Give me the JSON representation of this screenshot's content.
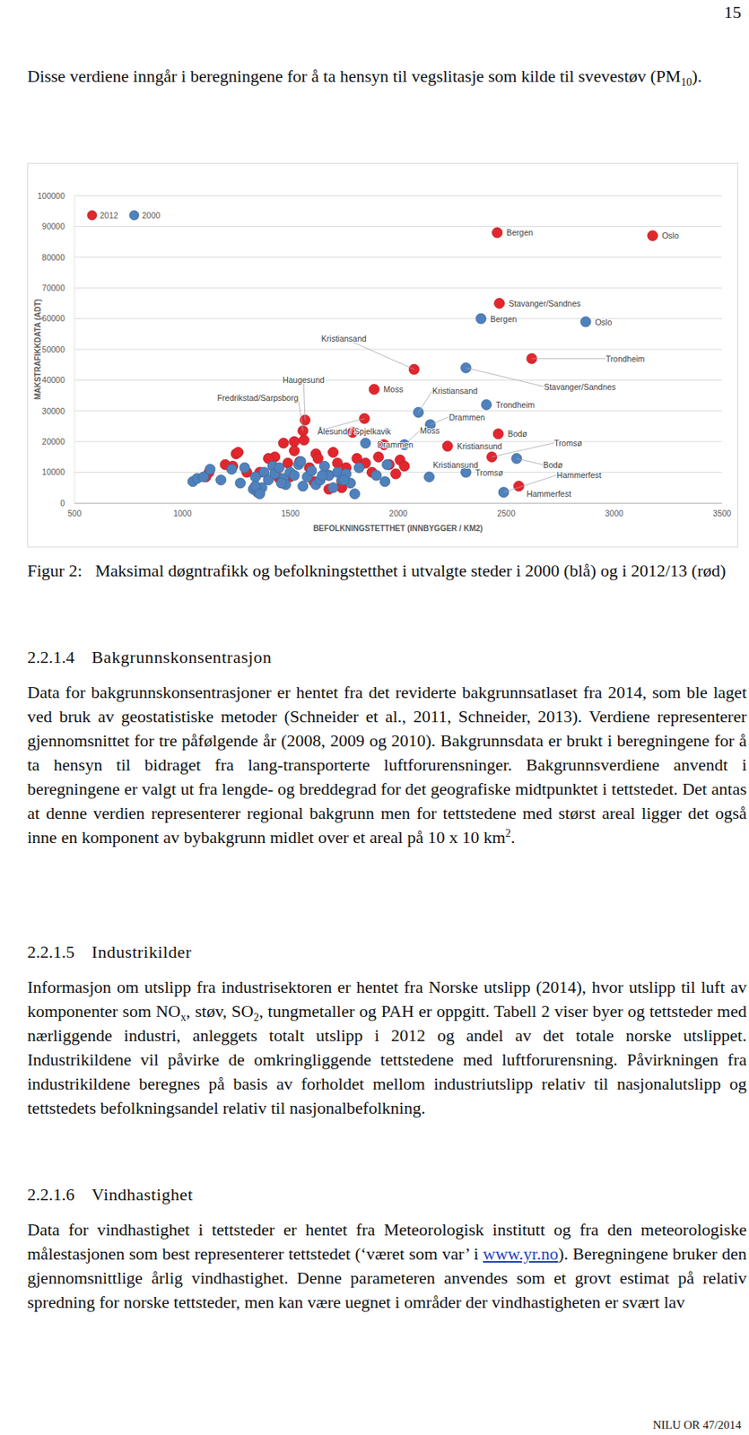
{
  "page_number": "15",
  "intro": {
    "runs": [
      {
        "t": "Disse verdiene inngår i beregningene for å ta hensyn til vegslitasje som kilde til svevestøv (PM"
      },
      {
        "sub": "10"
      },
      {
        "t": ")."
      }
    ]
  },
  "chart_data": {
    "type": "scatter",
    "x_label": "BEFOLKNINGSTETTHET (INNBYGGER / KM2)",
    "y_label": "MAKSTRAFIKKDATA (ADT)",
    "xlim": [
      500,
      3500
    ],
    "ylim": [
      0,
      100000
    ],
    "xticks": [
      500,
      1000,
      1500,
      2000,
      2500,
      3000,
      3500
    ],
    "yticks": [
      0,
      10000,
      20000,
      30000,
      40000,
      50000,
      60000,
      70000,
      80000,
      90000,
      100000
    ],
    "grid": true,
    "legend": "top-left",
    "series": [
      {
        "name": "2012",
        "color": "#e3262d",
        "marker": "circle",
        "x": [
          3180,
          2460,
          2470,
          2620,
          2075,
          1890,
          1570,
          1845,
          2465,
          2230,
          2435,
          2560,
          1125,
          1110,
          1250,
          1260,
          1235,
          1300,
          1360,
          1520,
          1430,
          1470,
          1490,
          1500,
          1520,
          1545,
          1565,
          1590,
          1620,
          1630,
          1560,
          1680,
          1700,
          1720,
          1740,
          1760,
          1790,
          1810,
          1850,
          1880,
          1910,
          1935,
          1960,
          1990,
          2010,
          2030,
          1680,
          1740,
          1610,
          1450,
          1400,
          1340,
          1440,
          1200
        ],
        "values": [
          87000,
          88000,
          65000,
          47000,
          43500,
          37000,
          27000,
          27500,
          22500,
          18500,
          15000,
          5500,
          10000,
          8500,
          16000,
          16500,
          12000,
          10000,
          10000,
          20000,
          15000,
          19500,
          13000,
          8500,
          17000,
          13500,
          20500,
          11500,
          16000,
          14500,
          23500,
          9000,
          16500,
          13000,
          7000,
          11500,
          23000,
          14500,
          13000,
          10000,
          15000,
          19000,
          12500,
          9500,
          14000,
          12000,
          4500,
          5000,
          7000,
          8000,
          14500,
          5500,
          11000,
          12500
        ]
      },
      {
        "name": "2000",
        "color": "#4f81bd",
        "marker": "circle",
        "x": [
          2870,
          2385,
          2315,
          2410,
          2095,
          2150,
          2030,
          1850,
          2145,
          2315,
          2550,
          2490,
          1050,
          1070,
          1100,
          1130,
          1180,
          1230,
          1270,
          1290,
          1330,
          1340,
          1350,
          1370,
          1380,
          1400,
          1420,
          1430,
          1450,
          1470,
          1480,
          1500,
          1520,
          1540,
          1560,
          1580,
          1600,
          1620,
          1640,
          1660,
          1680,
          1700,
          1720,
          1740,
          1760,
          1780,
          1800,
          1820,
          1900,
          1940,
          1950,
          1340,
          1360,
          1460,
          1550,
          1650,
          1750
        ],
        "values": [
          59000,
          60000,
          44000,
          32000,
          29500,
          25500,
          19000,
          19500,
          8500,
          10000,
          14500,
          3500,
          7000,
          8000,
          8500,
          11000,
          7500,
          11000,
          6500,
          11500,
          4500,
          8500,
          3500,
          5000,
          10000,
          7500,
          12000,
          9500,
          11500,
          8000,
          6000,
          10000,
          9000,
          12500,
          5500,
          8500,
          10500,
          6000,
          7500,
          12000,
          9000,
          5000,
          10000,
          7500,
          9500,
          6500,
          3000,
          11500,
          9000,
          7000,
          12500,
          5500,
          3000,
          6500,
          13500,
          9000,
          7500
        ]
      }
    ],
    "annotations": [
      {
        "text": "Oslo",
        "series": 0,
        "index": 0
      },
      {
        "text": "Bergen",
        "series": 0,
        "index": 1
      },
      {
        "text": "Stavanger/Sandnes",
        "series": 0,
        "index": 2
      },
      {
        "text": "Bergen",
        "series": 1,
        "index": 1
      },
      {
        "text": "Oslo",
        "series": 1,
        "index": 0
      },
      {
        "text": "Trondheim",
        "series": 0,
        "index": 3
      },
      {
        "text": "Stavanger/Sandnes",
        "series": 1,
        "index": 2
      },
      {
        "text": "Kristiansand",
        "series": 0,
        "index": 4
      },
      {
        "text": "Moss",
        "series": 0,
        "index": 5
      },
      {
        "text": "Haugesund",
        "series": 0,
        "index": 6
      },
      {
        "text": "Fredrikstad/Sarpsborg",
        "series": 0,
        "index": 30
      },
      {
        "text": "Ålesund / Spjelkavik",
        "series": 0,
        "index": 7
      },
      {
        "text": "Kristiansand",
        "series": 1,
        "index": 4
      },
      {
        "text": "Trondheim",
        "series": 1,
        "index": 3
      },
      {
        "text": "Drammen",
        "series": 1,
        "index": 5
      },
      {
        "text": "Moss",
        "series": 1,
        "index": 6
      },
      {
        "text": "Drammen",
        "series": 1,
        "index": 7
      },
      {
        "text": "Bodø",
        "series": 0,
        "index": 8
      },
      {
        "text": "Kristiansund",
        "series": 0,
        "index": 9
      },
      {
        "text": "Tromsø",
        "series": 0,
        "index": 10
      },
      {
        "text": "Kristiansund",
        "series": 1,
        "index": 8
      },
      {
        "text": "Tromsø",
        "series": 1,
        "index": 9
      },
      {
        "text": "Bodø",
        "series": 1,
        "index": 10
      },
      {
        "text": "Hammerfest",
        "series": 1,
        "index": 11
      },
      {
        "text": "Hammerfest",
        "series": 0,
        "index": 11
      }
    ]
  },
  "caption": {
    "label": "Figur 2:",
    "text": "Maksimal døgntrafikk og befolkningstetthet i utvalgte steder i 2000 (blå) og i 2012/13 (rød)"
  },
  "sections": [
    {
      "number": "2.2.1.4",
      "title": "Bakgrunnskonsentrasjon",
      "runs": [
        {
          "t": "Data for bakgrunnskonsentrasjoner er hentet fra det reviderte bakgrunnsatlaset fra 2014, som ble laget ved bruk av geostatistiske metoder (Schneider et al., 2011, Schneider, 2013). Verdiene representerer gjennomsnittet for tre påfølgende år (2008, 2009 og 2010). Bakgrunnsdata er brukt i beregningene for å ta hensyn til bidraget fra lang-transporterte luftforurensninger. Bakgrunnsverdiene anvendt i beregningene er valgt ut fra lengde- og breddegrad for det geografiske midtpunktet i tettstedet. Det antas at denne verdien representerer regional bakgrunn men for tettstedene med størst areal ligger det også inne en komponent av bybakgrunn midlet over et areal på 10 x 10 km"
        },
        {
          "sup": "2"
        },
        {
          "t": "."
        }
      ]
    },
    {
      "number": "2.2.1.5",
      "title": "Industrikilder",
      "runs": [
        {
          "t": "Informasjon om utslipp fra industrisektoren er hentet fra Norske utslipp (2014), hvor utslipp til luft av komponenter som NO"
        },
        {
          "sub": "x"
        },
        {
          "t": ", støv, SO"
        },
        {
          "sub": "2"
        },
        {
          "t": ", tungmetaller og PAH er oppgitt. Tabell 2 viser byer og tettsteder med nærliggende industri, anleggets totalt utslipp i 2012 og andel av det totale norske utslippet. Industrikildene vil påvirke de omkringliggende tettstedene med luftforurensning. Påvirkningen fra industrikildene beregnes på basis av forholdet mellom industriutslipp relativ til nasjonalutslipp og tettstedets befolkningsandel relativ til nasjonalbefolkning."
        }
      ]
    },
    {
      "number": "2.2.1.6",
      "title": "Vindhastighet",
      "runs": [
        {
          "t": "Data for vindhastighet i tettsteder er hentet fra Meteorologisk institutt og fra den meteorologiske målestasjonen som best representerer tettstedet (‘været som var’ i "
        },
        {
          "link": "www.yr.no"
        },
        {
          "t": "). Beregningene bruker den gjennomsnittlige årlig vindhastighet. Denne parameteren anvendes som et grovt estimat på relativ spredning for norske tettsteder, men kan være uegnet i områder der vindhastigheten er svært lav"
        }
      ]
    }
  ],
  "footer": "NILU OR 47/2014"
}
